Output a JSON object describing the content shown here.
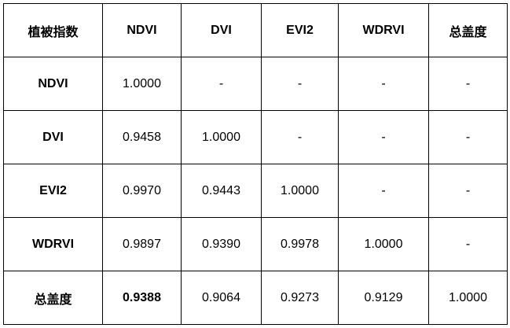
{
  "table": {
    "header": [
      "植被指数",
      "NDVI",
      "DVI",
      "EVI2",
      "WDRVI",
      "总盖度"
    ],
    "rows": [
      [
        "NDVI",
        "1.0000",
        "-",
        "-",
        "-",
        "-"
      ],
      [
        "DVI",
        "0.9458",
        "1.0000",
        "-",
        "-",
        "-"
      ],
      [
        "EVI2",
        "0.9970",
        "0.9443",
        "1.0000",
        "-",
        "-"
      ],
      [
        "WDRVI",
        "0.9897",
        "0.9390",
        "0.9978",
        "1.0000",
        "-"
      ],
      [
        "总盖度",
        "0.9388",
        "0.9064",
        "0.9273",
        "0.9129",
        "1.0000"
      ]
    ]
  }
}
